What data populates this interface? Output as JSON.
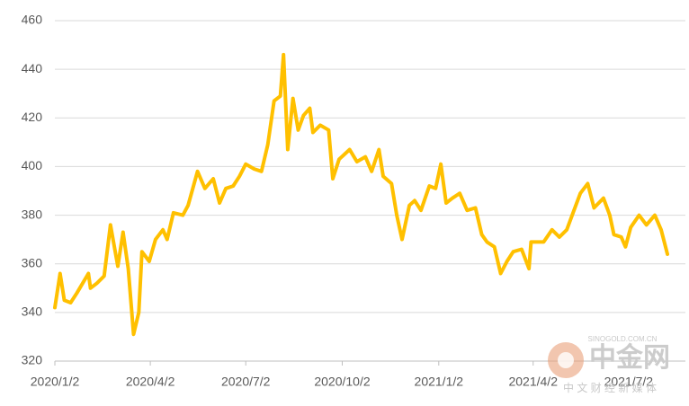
{
  "chart_data": {
    "type": "line",
    "x": [
      "2020/1/2",
      "2020/1/7",
      "2020/1/11",
      "2020/1/17",
      "2020/1/23",
      "2020/2/3",
      "2020/2/5",
      "2020/2/11",
      "2020/2/18",
      "2020/2/24",
      "2020/3/2",
      "2020/3/7",
      "2020/3/12",
      "2020/3/17",
      "2020/3/22",
      "2020/3/25",
      "2020/4/1",
      "2020/4/7",
      "2020/4/14",
      "2020/4/18",
      "2020/4/24",
      "2020/5/3",
      "2020/5/8",
      "2020/5/17",
      "2020/5/24",
      "2020/6/1",
      "2020/6/7",
      "2020/6/13",
      "2020/6/20",
      "2020/6/26",
      "2020/7/2",
      "2020/7/10",
      "2020/7/17",
      "2020/7/23",
      "2020/7/29",
      "2020/8/4",
      "2020/8/7",
      "2020/8/11",
      "2020/8/16",
      "2020/8/21",
      "2020/8/26",
      "2020/9/1",
      "2020/9/4",
      "2020/9/11",
      "2020/9/19",
      "2020/9/23",
      "2020/9/29",
      "2020/10/9",
      "2020/10/16",
      "2020/10/24",
      "2020/10/30",
      "2020/11/6",
      "2020/11/10",
      "2020/11/18",
      "2020/11/23",
      "2020/11/28",
      "2020/12/5",
      "2020/12/10",
      "2020/12/16",
      "2020/12/24",
      "2020/12/30",
      "2021/1/4",
      "2021/1/9",
      "2021/1/15",
      "2021/1/22",
      "2021/1/29",
      "2021/2/6",
      "2021/2/12",
      "2021/2/17",
      "2021/2/24",
      "2021/3/2",
      "2021/3/8",
      "2021/3/14",
      "2021/3/22",
      "2021/3/29",
      "2021/3/31",
      "2021/4/6",
      "2021/4/12",
      "2021/4/20",
      "2021/4/27",
      "2021/5/4",
      "2021/5/10",
      "2021/5/17",
      "2021/5/24",
      "2021/5/30",
      "2021/6/8",
      "2021/6/14",
      "2021/6/18",
      "2021/6/25",
      "2021/6/29",
      "2021/7/4",
      "2021/7/12",
      "2021/7/19",
      "2021/7/27",
      "2021/8/2",
      "2021/8/8"
    ],
    "series": [
      {
        "color": "#ffc000",
        "values": [
          342,
          356,
          345,
          344,
          348,
          356,
          350,
          352,
          355,
          376,
          359,
          373,
          358,
          331,
          340,
          365,
          361,
          370,
          374,
          370,
          381,
          380,
          384,
          398,
          391,
          395,
          385,
          391,
          392,
          396,
          401,
          399,
          398,
          409,
          427,
          429,
          446,
          407,
          428,
          415,
          421,
          424,
          414,
          417,
          415,
          395,
          403,
          407,
          402,
          404,
          398,
          407,
          396,
          393,
          380,
          370,
          384,
          386,
          382,
          392,
          391,
          401,
          385,
          387,
          389,
          382,
          383,
          372,
          369,
          367,
          356,
          361,
          365,
          366,
          358,
          369,
          369,
          369,
          374,
          371,
          374,
          381,
          389,
          393,
          383,
          387,
          380,
          372,
          371,
          367,
          375,
          380,
          376,
          380,
          374,
          364
        ]
      }
    ],
    "xlim": [
      "2020/1/2",
      "2021/8/8"
    ],
    "xticks": [
      "2020/1/2",
      "2020/4/2",
      "2020/7/2",
      "2020/10/2",
      "2021/1/2",
      "2021/4/2",
      "2021/7/2"
    ],
    "ylim": [
      320,
      460
    ],
    "yticks": [
      320,
      340,
      360,
      380,
      400,
      420,
      440,
      460
    ],
    "grid": true
  },
  "watermark": {
    "name": "中金网",
    "site": "SINOGOLD.COM.CN",
    "tagline": "中 文 财 经 新 媒 体"
  }
}
